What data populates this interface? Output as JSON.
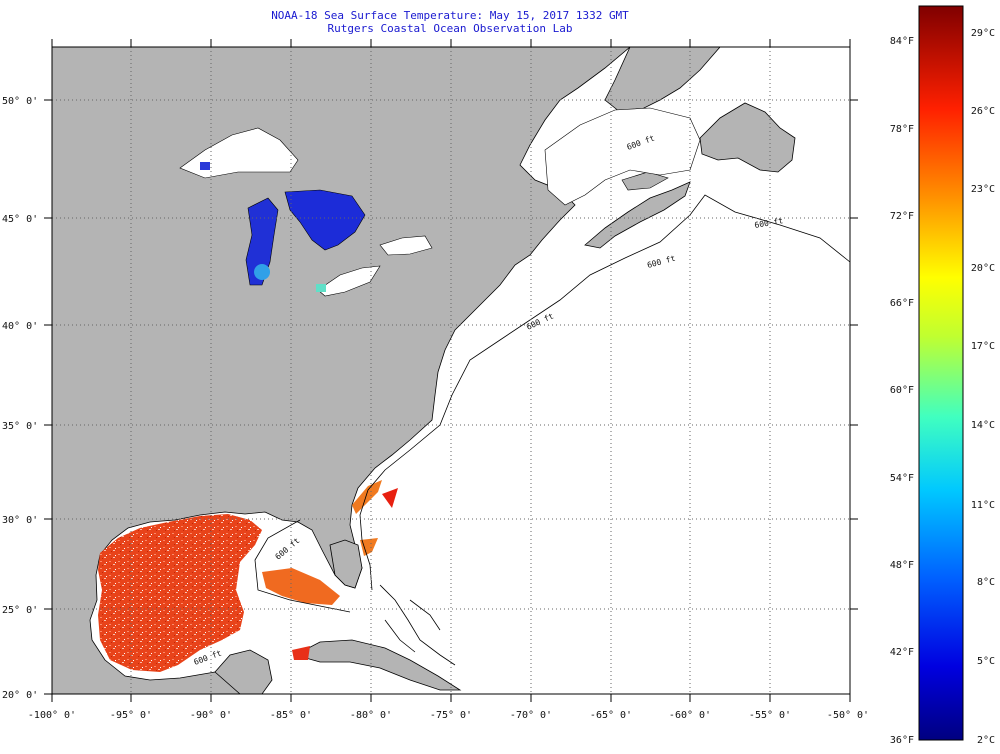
{
  "header": {
    "title": "NOAA-18 Sea Surface Temperature:  May 15, 2017 1332 GMT",
    "subtitle": "Rutgers Coastal Ocean Observation Lab"
  },
  "map": {
    "lat_labels": [
      "50° 0'",
      "45° 0'",
      "40° 0'",
      "35° 0'",
      "30° 0'",
      "25° 0'",
      "20° 0'"
    ],
    "lon_labels": [
      "-100° 0'",
      "-95° 0'",
      "-90° 0'",
      "-85° 0'",
      "-80° 0'",
      "-75° 0'",
      "-70° 0'",
      "-65° 0'",
      "-60° 0'",
      "-55° 0'",
      "-50° 0'"
    ],
    "bathymetry_labels": [
      "600 ft",
      "600 ft",
      "600 ft",
      "600 ft",
      "600 ft",
      "600 ft"
    ],
    "colors": {
      "land": "#b4b4b4",
      "no_data": "#ffffff",
      "cold_water": "#1c2cd8",
      "warm_water": "#f04a10",
      "gridline": "#666666"
    }
  },
  "colorbar": {
    "fahrenheit_labels": [
      "84°F",
      "78°F",
      "72°F",
      "66°F",
      "60°F",
      "54°F",
      "48°F",
      "42°F",
      "36°F"
    ],
    "celsius_labels": [
      "29°C",
      "26°C",
      "23°C",
      "20°C",
      "17°C",
      "14°C",
      "11°C",
      "8°C",
      "5°C",
      "2°C"
    ]
  }
}
